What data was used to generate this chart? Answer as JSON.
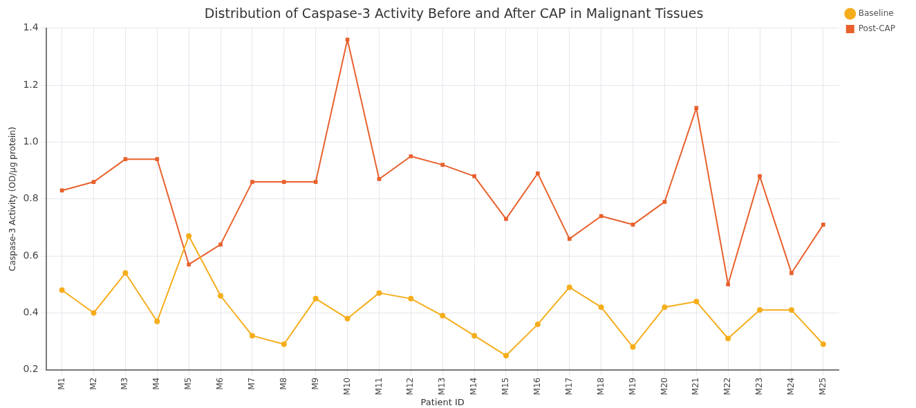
{
  "chart_data": {
    "type": "line",
    "title": "Distribution of Caspase-3 Activity Before and After CAP in Malignant Tissues",
    "xlabel": "Patient ID",
    "ylabel": "Caspase-3 Activity (OD/µg protein)",
    "categories": [
      "M1",
      "M2",
      "M3",
      "M4",
      "M5",
      "M6",
      "M7",
      "M8",
      "M9",
      "M10",
      "M11",
      "M12",
      "M13",
      "M14",
      "M15",
      "M16",
      "M17",
      "M18",
      "M19",
      "M20",
      "M21",
      "M22",
      "M23",
      "M24",
      "M25"
    ],
    "series": [
      {
        "name": "Baseline",
        "color": "#f5ad1b",
        "marker": "circle",
        "values": [
          0.48,
          0.4,
          0.54,
          0.37,
          0.67,
          0.46,
          0.32,
          0.29,
          0.45,
          0.38,
          0.47,
          0.45,
          0.39,
          0.32,
          0.25,
          0.36,
          0.49,
          0.42,
          0.28,
          0.42,
          0.44,
          0.31,
          0.41,
          0.41,
          0.29
        ]
      },
      {
        "name": "Post-CAP",
        "color": "#e8602c",
        "marker": "square",
        "values": [
          0.83,
          0.86,
          0.94,
          0.94,
          0.57,
          0.64,
          0.86,
          0.86,
          0.86,
          1.36,
          0.87,
          0.95,
          0.92,
          0.88,
          0.73,
          0.89,
          0.66,
          0.74,
          0.71,
          0.79,
          1.12,
          0.5,
          0.88,
          0.54,
          0.71
        ]
      }
    ],
    "ylim": [
      0.2,
      1.4
    ],
    "yticks": [
      {
        "value": 0.2,
        "label": "0.2"
      },
      {
        "value": 0.4,
        "label": "0.4"
      },
      {
        "value": 0.6,
        "label": "0.6"
      },
      {
        "value": 0.8,
        "label": "0.8"
      },
      {
        "value": 1,
        "label": "1.0"
      },
      {
        "value": 1.2,
        "label": "1.2"
      },
      {
        "value": 1.4,
        "label": "1.4"
      }
    ],
    "grid": true,
    "legend": "top right",
    "line_style": "solid"
  }
}
